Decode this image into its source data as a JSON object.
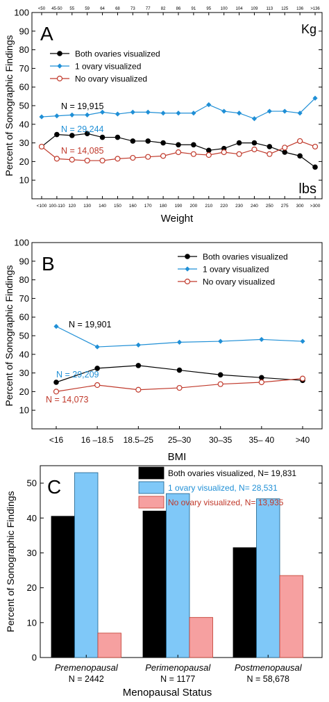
{
  "colors": {
    "black": "#000000",
    "blue": "#1f8fd6",
    "red": "#c0392b",
    "bar_blue": "#7fc8f8",
    "bar_red": "#f6a0a0"
  },
  "chart_data": [
    {
      "type": "line",
      "panel_letter": "A",
      "ylabel": "Percent of Sonographic Findings",
      "xlabel": "Weight",
      "top_unit": "Kg",
      "bottom_unit": "lbs",
      "ylim": [
        0,
        100
      ],
      "yticks": [
        10,
        20,
        30,
        40,
        50,
        60,
        70,
        80,
        90,
        100
      ],
      "top_ticks": [
        "<50",
        "45-50",
        "55",
        "59",
        "64",
        "68",
        "73",
        "77",
        "82",
        "86",
        "91",
        "95",
        "100",
        "104",
        "109",
        "113",
        "125",
        "136",
        ">136"
      ],
      "categories": [
        "<100",
        "100-110",
        "120",
        "130",
        "140",
        "150",
        "160",
        "170",
        "180",
        "190",
        "200",
        "210",
        "220",
        "230",
        "240",
        "250",
        "275",
        "300",
        ">300"
      ],
      "legend": [
        "Both ovaries visualized",
        "1 ovary visualized",
        "No ovary visualized"
      ],
      "series": [
        {
          "name": "Both ovaries visualized",
          "annotation": "N = 19,915",
          "values": [
            28,
            34.5,
            34,
            35,
            33,
            33,
            31,
            31,
            30,
            29,
            29,
            26,
            27,
            30,
            30,
            28,
            25,
            23,
            17
          ]
        },
        {
          "name": "1 ovary visualized",
          "annotation": "N = 29,244",
          "values": [
            44,
            44.5,
            45,
            45,
            46.5,
            45.5,
            46.5,
            46.5,
            46,
            46,
            46,
            50.5,
            47,
            46,
            43,
            47,
            47,
            46,
            54
          ]
        },
        {
          "name": "No ovary visualized",
          "annotation": "N = 14,085",
          "values": [
            28,
            21.5,
            21,
            20.5,
            20.5,
            21.5,
            22,
            22.5,
            23,
            25,
            24,
            23.5,
            25,
            24,
            26.5,
            24,
            27.5,
            31,
            28
          ]
        }
      ]
    },
    {
      "type": "line",
      "panel_letter": "B",
      "ylabel": "Percent of Sonographic Findings",
      "xlabel": "BMI",
      "ylim": [
        0,
        100
      ],
      "yticks": [
        10,
        20,
        30,
        40,
        50,
        60,
        70,
        80,
        90,
        100
      ],
      "categories": [
        "<16",
        "16 –18.5",
        "18.5–25",
        "25–30",
        "30–35",
        "35– 40",
        ">40"
      ],
      "legend": [
        "Both ovaries visualized",
        "1 ovary visualized",
        "No ovary visualized"
      ],
      "series": [
        {
          "name": "Both ovaries visualized",
          "annotation": "N = 19,901",
          "values": [
            25,
            32.5,
            34,
            31.5,
            29,
            27.5,
            26
          ]
        },
        {
          "name": "1 ovary visualized",
          "annotation": "N = 29,209",
          "values": [
            55,
            44,
            45,
            46.5,
            47,
            48,
            47
          ]
        },
        {
          "name": "No ovary visualized",
          "annotation": "N = 14,073",
          "values": [
            20,
            23.5,
            21,
            22,
            24,
            25,
            27
          ]
        }
      ]
    },
    {
      "type": "bar",
      "panel_letter": "C",
      "ylabel": "Percent of Sonographic Findings",
      "xlabel": "Menopausal Status",
      "ylim": [
        0,
        55
      ],
      "yticks": [
        0,
        10,
        20,
        30,
        40,
        50
      ],
      "categories": [
        "Premenopausal",
        "Perimenopausal",
        "Postmenopausal"
      ],
      "category_n": [
        "N = 2442",
        "N = 1177",
        "N = 58,678"
      ],
      "legend": [
        "Both ovaries visualized, N= 19,831",
        "1 ovary visualized, N= 28,531",
        "No ovary visualized, N= 13,935"
      ],
      "series": [
        {
          "name": "Both ovaries visualized",
          "values": [
            40.5,
            42,
            31.5
          ]
        },
        {
          "name": "1 ovary visualized",
          "values": [
            53,
            47,
            45.5
          ]
        },
        {
          "name": "No ovary visualized",
          "values": [
            7,
            11.5,
            23.5
          ]
        }
      ]
    }
  ]
}
